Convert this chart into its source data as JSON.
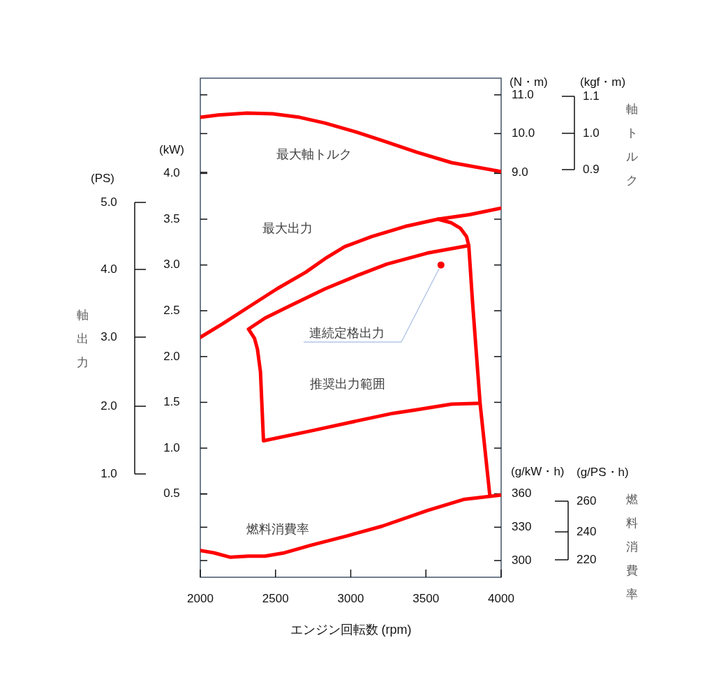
{
  "chart_data": {
    "type": "line",
    "xlabel": "エンジン回転数 (rpm)",
    "ylabel": "(kW)",
    "y2label": "(N・m)",
    "y3label": "(g/kW・h)",
    "annotations": [
      "(PS)",
      "5.0",
      "4.0",
      "3.0",
      "2.0",
      "1.0",
      "軸出力",
      "(kgf・m)",
      "1.1",
      "1.0",
      "0.9",
      "軸トルク",
      "(g/PS・h)",
      "260",
      "240",
      "220",
      "燃料消費率"
    ],
    "xlim": [
      2000,
      4000
    ],
    "xticks": [
      2000,
      2500,
      3000,
      3500,
      4000
    ],
    "ylim": [
      -0.41,
      5.04
    ],
    "yticks": [
      0.5,
      {
        "value": 1,
        "label": "1.0"
      },
      1.5,
      {
        "value": 2,
        "label": "2.0"
      },
      2.5,
      {
        "value": 3,
        "label": "3.0"
      },
      3.5,
      {
        "value": 4,
        "label": "4.0"
      }
    ],
    "y2lim": [
      -1.45,
      11.43
    ],
    "y2ticks": [
      {
        "value": 9,
        "label": "9.0"
      },
      {
        "value": 10,
        "label": "10.0"
      },
      {
        "value": 11,
        "label": "11.0"
      }
    ],
    "y3lim": [
      285,
      734
    ],
    "y3ticks": [
      300,
      330,
      360
    ],
    "marker": "none",
    "line_style": "solid",
    "legend": false,
    "series": [
      {
        "name": "最大軸トルク",
        "type": "line",
        "axis": "y2",
        "color": "#ff0000",
        "x": [
          2000,
          2120,
          2310,
          2480,
          2660,
          2830,
          3020,
          3210,
          3440,
          3670,
          4000
        ],
        "values": [
          10.42,
          10.48,
          10.53,
          10.51,
          10.42,
          10.27,
          10.06,
          9.82,
          9.52,
          9.25,
          9.02
        ]
      },
      {
        "name": "最大出力",
        "type": "line",
        "color": "#ff0000",
        "x": [
          2000,
          2150,
          2320,
          2510,
          2700,
          2830,
          2960,
          3140,
          3360,
          3580,
          3790,
          4000
        ],
        "values": [
          2.21,
          2.36,
          2.54,
          2.74,
          2.92,
          3.07,
          3.2,
          3.31,
          3.42,
          3.5,
          3.55,
          3.62
        ]
      },
      {
        "type": "line",
        "color": "#ff0000",
        "x": [
          3580,
          3670,
          3730,
          3770,
          3785,
          3810,
          3860,
          3925
        ],
        "values": [
          3.5,
          3.46,
          3.4,
          3.31,
          3.21,
          2.59,
          1.49,
          0.48
        ]
      },
      {
        "name": "推奨出力範囲",
        "type": "line",
        "color": "#ff0000",
        "x": [
          3780,
          3510,
          3240,
          3050,
          2830,
          2590,
          2430,
          2320,
          2360,
          2380,
          2400,
          2420,
          2740,
          3050,
          3280,
          3440,
          3670,
          3860
        ],
        "values": [
          3.21,
          3.13,
          3.01,
          2.89,
          2.74,
          2.55,
          2.42,
          2.3,
          2.2,
          2.08,
          1.83,
          1.08,
          1.19,
          1.3,
          1.38,
          1.42,
          1.48,
          1.49
        ]
      },
      {
        "name": "連続定格出力",
        "type": "scatter",
        "marker": "circle",
        "color": "#ff0000",
        "x": [
          3600
        ],
        "values": [
          3.0
        ]
      },
      {
        "name": "燃料消費率",
        "type": "line",
        "axis": "y3",
        "color": "#ff0000",
        "x": [
          2000,
          2090,
          2200,
          2320,
          2430,
          2560,
          2740,
          2970,
          3210,
          3510,
          3750,
          4000
        ],
        "values": [
          309,
          307,
          303,
          304,
          304,
          307,
          314,
          322,
          331,
          345,
          355,
          359
        ]
      }
    ]
  }
}
